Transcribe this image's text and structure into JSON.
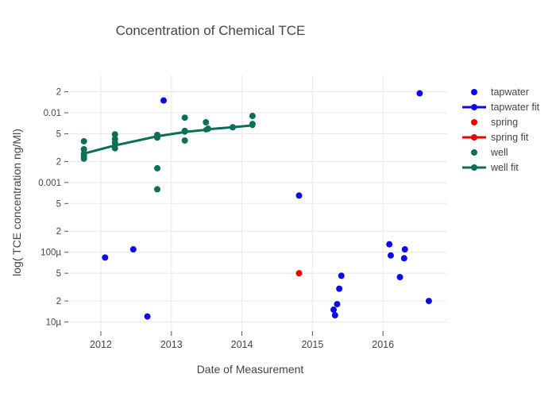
{
  "title": "Concentration of Chemical TCE",
  "xlabel": "Date of Measurement",
  "ylabel": "log( TCE concentration ng/Ml)",
  "colors": {
    "tapwater": "#0b0be8",
    "spring": "#ee0000",
    "well": "#0c6e54",
    "grid": "#e8e8e8",
    "tick": "#555555",
    "text": "#444444",
    "background": "#ffffff"
  },
  "chart_data": {
    "type": "scatter",
    "title": "Concentration of Chemical TCE",
    "xlabel": "Date of Measurement",
    "ylabel": "log( TCE concentration ng/Ml)",
    "y_scale": "log",
    "grid": true,
    "legend_position": "right",
    "xlim": [
      2011.55,
      2016.91
    ],
    "ylim": [
      7.8e-06,
      0.0343
    ],
    "x_ticks": [
      {
        "v": 2012,
        "label": "2012"
      },
      {
        "v": 2013,
        "label": "2013"
      },
      {
        "v": 2014,
        "label": "2014"
      },
      {
        "v": 2015,
        "label": "2015"
      },
      {
        "v": 2016,
        "label": "2016"
      }
    ],
    "y_ticks": [
      {
        "v": 0.02,
        "label": "2"
      },
      {
        "v": 0.01,
        "label": "0.01"
      },
      {
        "v": 0.005,
        "label": "5"
      },
      {
        "v": 0.002,
        "label": "2"
      },
      {
        "v": 0.001,
        "label": "0.001"
      },
      {
        "v": 0.0005,
        "label": "5"
      },
      {
        "v": 0.0002,
        "label": "2"
      },
      {
        "v": 0.0001,
        "label": "100µ"
      },
      {
        "v": 5e-05,
        "label": "5"
      },
      {
        "v": 2e-05,
        "label": "2"
      },
      {
        "v": 1e-05,
        "label": "10µ"
      }
    ],
    "series": [
      {
        "name": "tapwater",
        "mode": "markers",
        "color": "#0b0be8",
        "points": [
          [
            2012.06,
            8.4e-05
          ],
          [
            2012.46,
            0.00011
          ],
          [
            2012.66,
            1.2e-05
          ],
          [
            2012.89,
            0.015
          ],
          [
            2014.81,
            0.00065
          ],
          [
            2015.3,
            1.5e-05
          ],
          [
            2015.32,
            1.25e-05
          ],
          [
            2015.35,
            1.8e-05
          ],
          [
            2015.38,
            3e-05
          ],
          [
            2015.41,
            4.6e-05
          ],
          [
            2016.09,
            0.00013
          ],
          [
            2016.11,
            9e-05
          ],
          [
            2016.24,
            4.4e-05
          ],
          [
            2016.3,
            8.2e-05
          ],
          [
            2016.31,
            0.00011
          ],
          [
            2016.52,
            0.019
          ],
          [
            2016.65,
            2e-05
          ]
        ]
      },
      {
        "name": "tapwater fit",
        "mode": "line",
        "color": "#0b0be8",
        "points": []
      },
      {
        "name": "spring",
        "mode": "markers",
        "color": "#ee0000",
        "points": [
          [
            2014.81,
            5e-05
          ]
        ]
      },
      {
        "name": "spring fit",
        "mode": "line",
        "color": "#ee0000",
        "points": [
          [
            2014.81,
            5e-05
          ]
        ]
      },
      {
        "name": "well",
        "mode": "markers",
        "color": "#0c6e54",
        "points": [
          [
            2011.76,
            0.0039
          ],
          [
            2011.76,
            0.003
          ],
          [
            2011.76,
            0.0026
          ],
          [
            2011.76,
            0.0024
          ],
          [
            2011.76,
            0.0022
          ],
          [
            2012.2,
            0.0049
          ],
          [
            2012.2,
            0.0042
          ],
          [
            2012.2,
            0.0037
          ],
          [
            2012.2,
            0.0031
          ],
          [
            2012.8,
            0.0048
          ],
          [
            2012.8,
            0.0044
          ],
          [
            2012.8,
            0.0016
          ],
          [
            2012.8,
            0.0008
          ],
          [
            2013.19,
            0.0085
          ],
          [
            2013.19,
            0.0055
          ],
          [
            2013.19,
            0.004
          ],
          [
            2013.49,
            0.0073
          ],
          [
            2013.52,
            0.0059
          ],
          [
            2013.87,
            0.0062
          ],
          [
            2014.15,
            0.009
          ],
          [
            2014.15,
            0.0069
          ]
        ]
      },
      {
        "name": "well fit",
        "mode": "line",
        "color": "#0c6e54",
        "points": [
          [
            2011.76,
            0.0026
          ],
          [
            2012.2,
            0.0034
          ],
          [
            2012.8,
            0.0046
          ],
          [
            2013.19,
            0.0053
          ],
          [
            2013.49,
            0.0057
          ],
          [
            2013.52,
            0.0058
          ],
          [
            2013.87,
            0.0062
          ],
          [
            2014.15,
            0.0066
          ]
        ]
      }
    ]
  },
  "legend": {
    "items": [
      {
        "label": "tapwater",
        "type": "marker",
        "color": "#0b0be8"
      },
      {
        "label": "tapwater fit",
        "type": "fit",
        "color": "#0b0be8"
      },
      {
        "label": "spring",
        "type": "marker",
        "color": "#ee0000"
      },
      {
        "label": "spring fit",
        "type": "fit",
        "color": "#ee0000"
      },
      {
        "label": "well",
        "type": "marker",
        "color": "#0c6e54"
      },
      {
        "label": "well fit",
        "type": "fit",
        "color": "#0c6e54"
      }
    ]
  }
}
